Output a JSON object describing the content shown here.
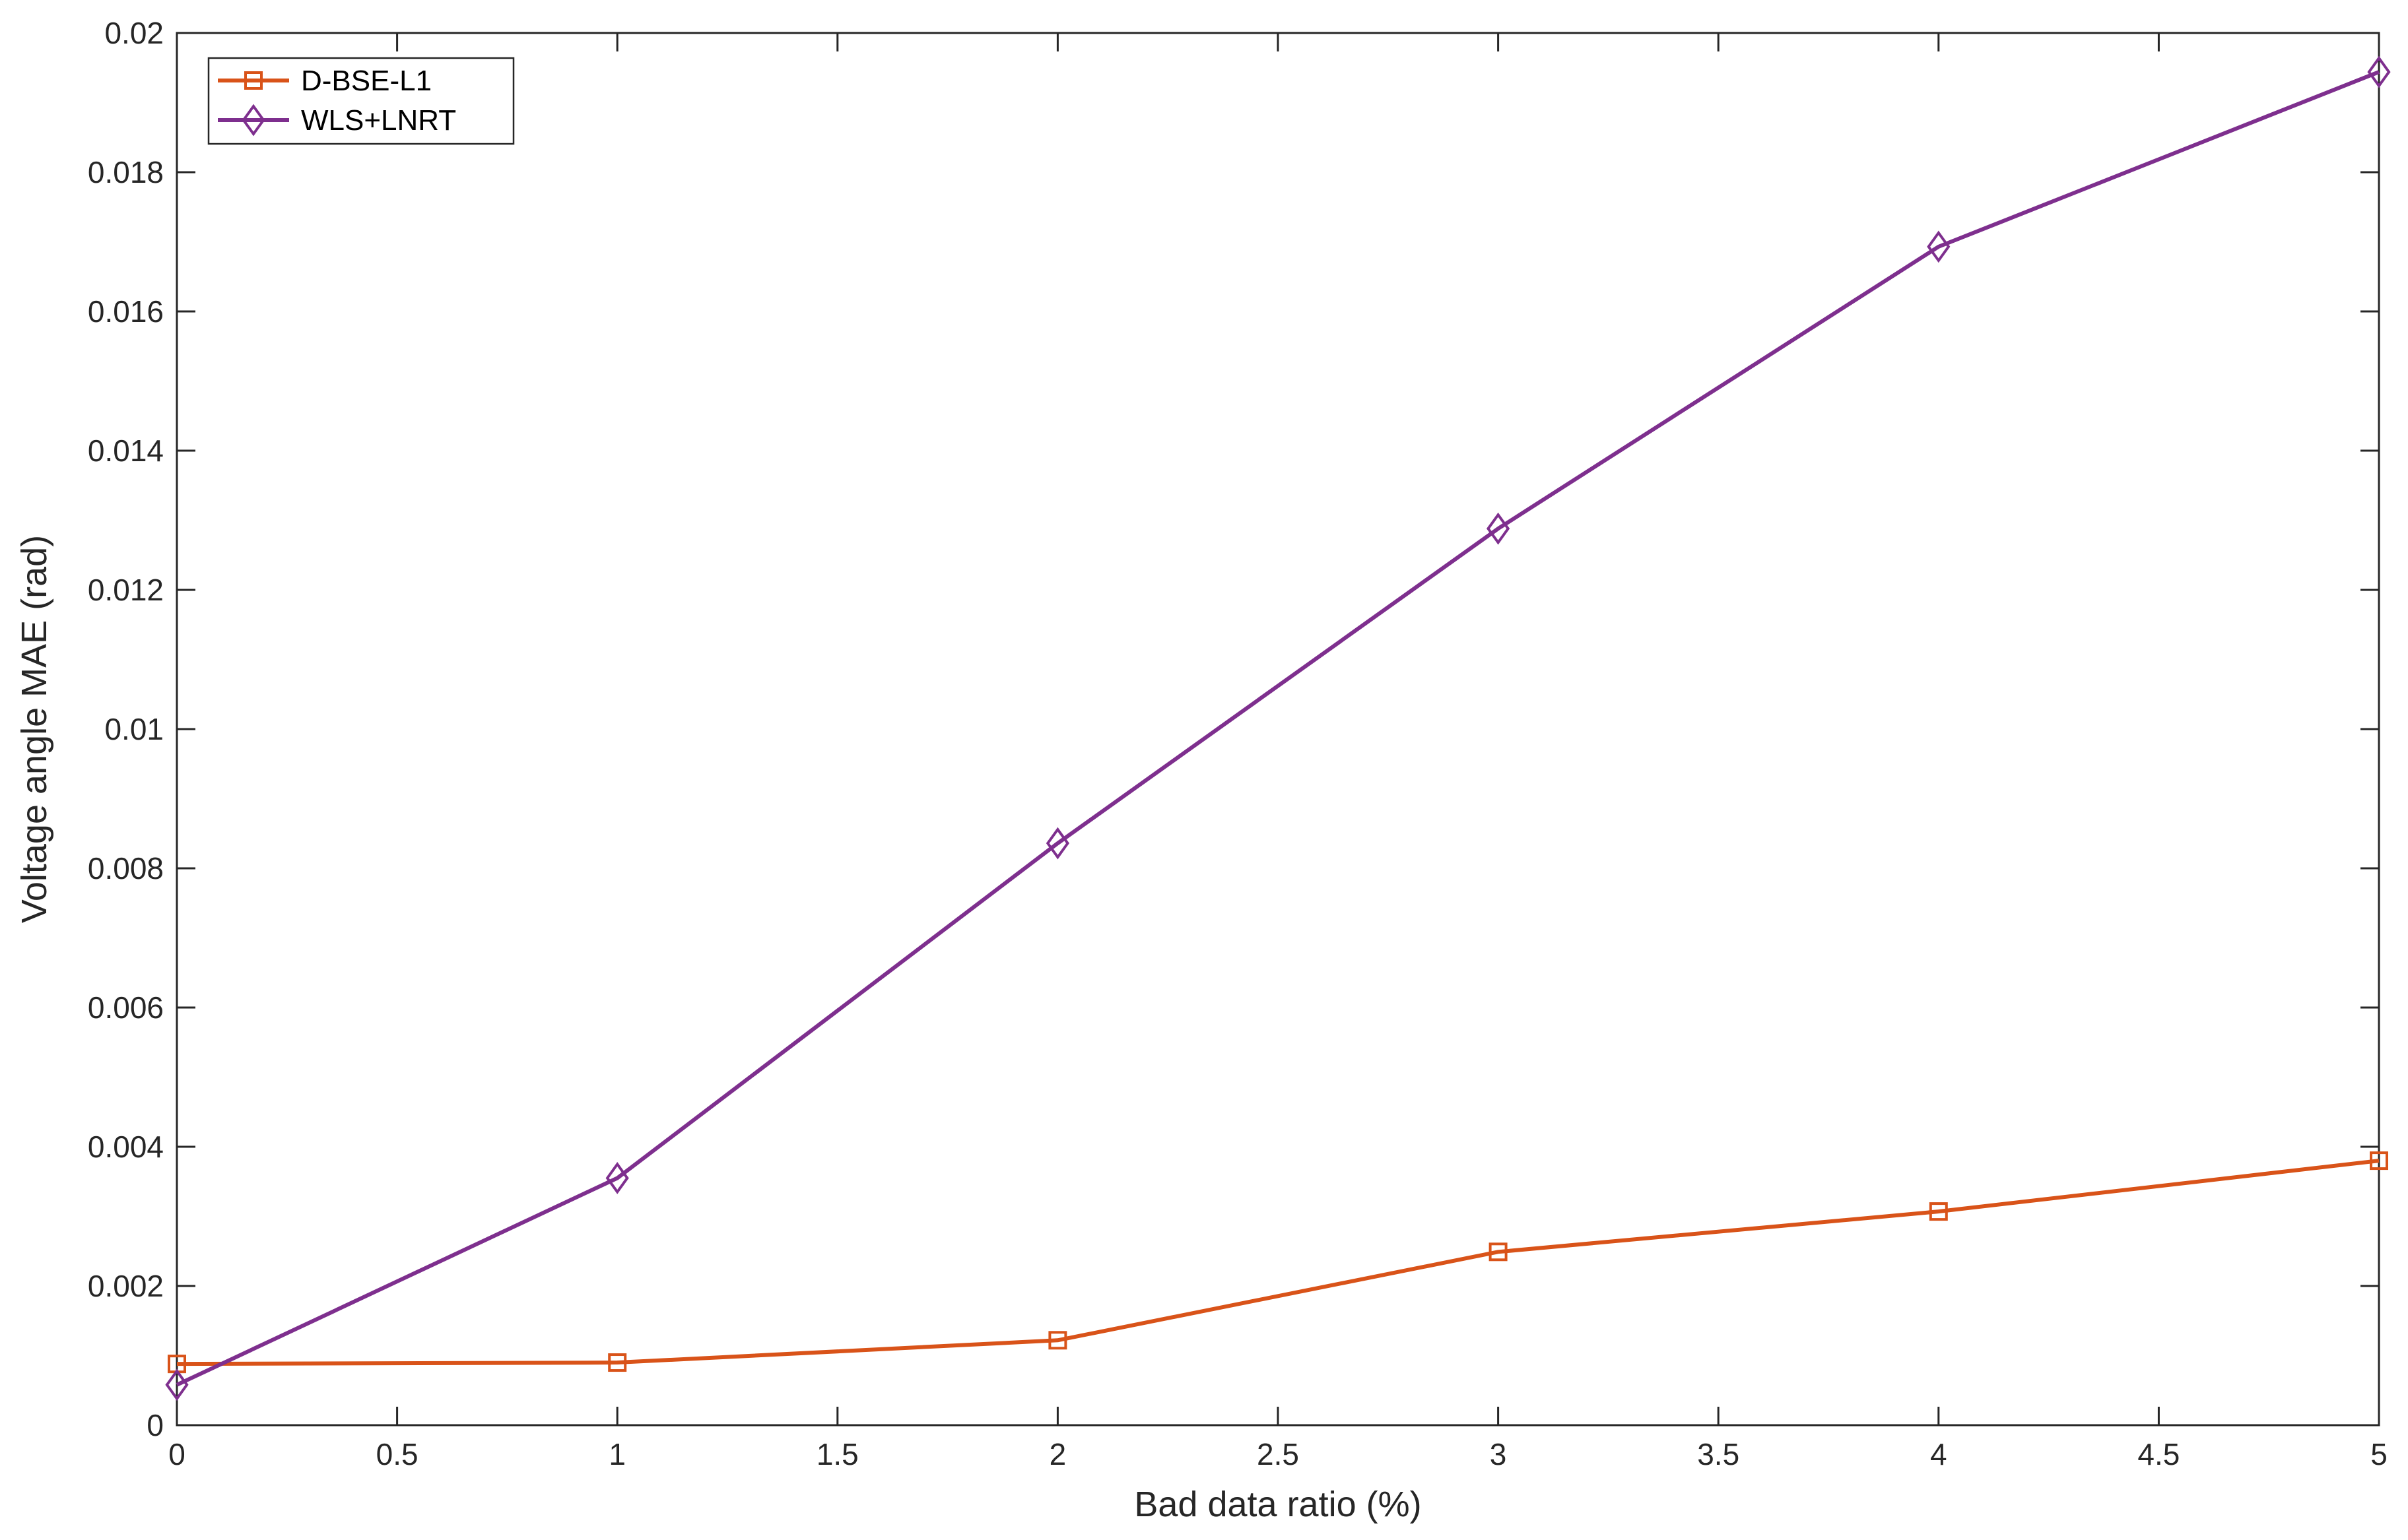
{
  "chart_data": {
    "type": "line",
    "title": "",
    "xlabel": "Bad data ratio (%)",
    "ylabel": "Voltage angle MAE (rad)",
    "xlim": [
      0,
      5
    ],
    "ylim": [
      0,
      0.02
    ],
    "x_ticks": [
      "0",
      "0.5",
      "1",
      "1.5",
      "2",
      "2.5",
      "3",
      "3.5",
      "4",
      "4.5",
      "5"
    ],
    "y_ticks": [
      "0",
      "0.002",
      "0.004",
      "0.006",
      "0.008",
      "0.01",
      "0.012",
      "0.014",
      "0.016",
      "0.018",
      "0.02"
    ],
    "grid": false,
    "legend_position": "top-left",
    "x": [
      0,
      1,
      2,
      3,
      4,
      5
    ],
    "series": [
      {
        "name": "D-BSE-L1",
        "color": "#D95319",
        "marker": "square",
        "values": [
          0.00088,
          0.0009,
          0.00122,
          0.00249,
          0.00307,
          0.0038
        ]
      },
      {
        "name": "WLS+LNRT",
        "color": "#7E2F8E",
        "marker": "diamond",
        "values": [
          0.00058,
          0.00355,
          0.00836,
          0.01288,
          0.01693,
          0.01944
        ]
      }
    ]
  }
}
